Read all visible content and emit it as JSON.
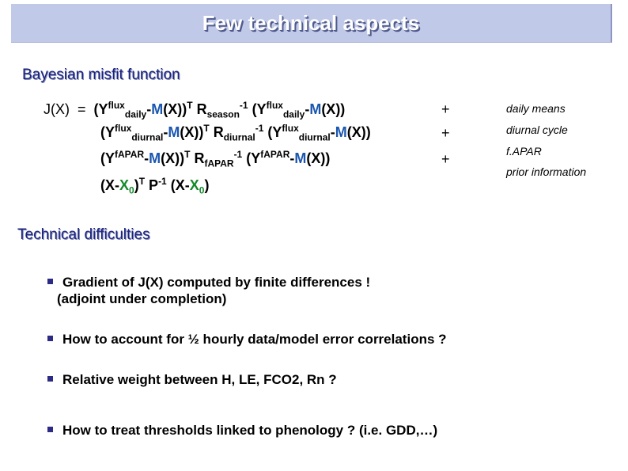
{
  "slide": {
    "title": "Few technical aspects",
    "section1": "Bayesian misfit function",
    "section2": "Technical difficulties"
  },
  "equation": {
    "row1_plus": "+",
    "row2_plus": "+",
    "row3_plus": "+"
  },
  "labels": {
    "daily": "daily means",
    "diurnal": "diurnal cycle",
    "fapar": "f.APAR",
    "prior": "prior information"
  },
  "bullets": {
    "b1_line1": "Gradient of J(X) computed by finite differences !",
    "b1_line2": "(adjoint under completion)",
    "b2": "How to account for ½ hourly data/model error correlations ?",
    "b3": "Relative weight between H, LE, FCO2, Rn ?",
    "b4": "How to treat thresholds linked to phenology ? (i.e. GDD,…)"
  },
  "colors": {
    "title_bg": "#c0c9e8",
    "heading": "#1a237e",
    "model_term": "#1a56b0",
    "prior_term": "#158a2a",
    "bullet": "#2b2b86"
  }
}
